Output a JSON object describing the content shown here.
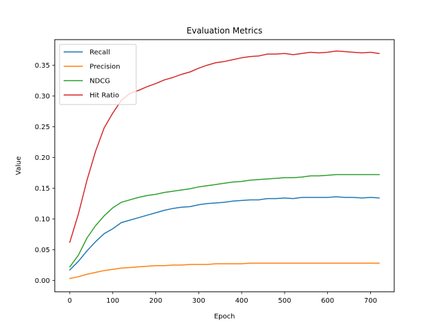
{
  "chart_data": {
    "type": "line",
    "title": "Evaluation Metrics",
    "xlabel": "Epoch",
    "ylabel": "Value",
    "xlim": [
      -35,
      755
    ],
    "ylim": [
      -0.0185,
      0.3915
    ],
    "xticks": [
      0,
      100,
      200,
      300,
      400,
      500,
      600,
      700
    ],
    "yticks": [
      0.0,
      0.05,
      0.1,
      0.15,
      0.2,
      0.25,
      0.3,
      0.35
    ],
    "ytick_labels": [
      "0.00",
      "0.05",
      "0.10",
      "0.15",
      "0.20",
      "0.25",
      "0.30",
      "0.35"
    ],
    "legend_position": "upper-left",
    "grid": false,
    "x": [
      0,
      20,
      40,
      60,
      80,
      100,
      120,
      140,
      160,
      180,
      200,
      220,
      240,
      260,
      280,
      300,
      320,
      340,
      360,
      380,
      400,
      420,
      440,
      460,
      480,
      500,
      520,
      540,
      560,
      580,
      600,
      620,
      640,
      660,
      680,
      700,
      720
    ],
    "series": [
      {
        "name": "Recall",
        "color": "#1f77b4",
        "values": [
          0.017,
          0.031,
          0.048,
          0.063,
          0.076,
          0.084,
          0.094,
          0.098,
          0.102,
          0.106,
          0.11,
          0.114,
          0.117,
          0.119,
          0.12,
          0.123,
          0.125,
          0.126,
          0.127,
          0.129,
          0.13,
          0.131,
          0.131,
          0.133,
          0.133,
          0.134,
          0.133,
          0.135,
          0.135,
          0.135,
          0.135,
          0.136,
          0.135,
          0.135,
          0.134,
          0.135,
          0.134
        ]
      },
      {
        "name": "Precision",
        "color": "#ff7f0e",
        "values": [
          0.003,
          0.006,
          0.01,
          0.013,
          0.016,
          0.018,
          0.02,
          0.021,
          0.022,
          0.023,
          0.024,
          0.024,
          0.025,
          0.025,
          0.026,
          0.026,
          0.026,
          0.027,
          0.027,
          0.027,
          0.027,
          0.028,
          0.028,
          0.028,
          0.028,
          0.028,
          0.028,
          0.028,
          0.028,
          0.028,
          0.028,
          0.028,
          0.028,
          0.028,
          0.028,
          0.028,
          0.028
        ]
      },
      {
        "name": "NDCG",
        "color": "#2ca02c",
        "values": [
          0.022,
          0.041,
          0.069,
          0.089,
          0.105,
          0.118,
          0.127,
          0.131,
          0.135,
          0.138,
          0.14,
          0.143,
          0.145,
          0.147,
          0.149,
          0.152,
          0.154,
          0.156,
          0.158,
          0.16,
          0.161,
          0.163,
          0.164,
          0.165,
          0.166,
          0.167,
          0.167,
          0.168,
          0.17,
          0.17,
          0.171,
          0.172,
          0.172,
          0.172,
          0.172,
          0.172,
          0.172
        ]
      },
      {
        "name": "Hit Ratio",
        "color": "#d62728",
        "values": [
          0.062,
          0.108,
          0.163,
          0.21,
          0.248,
          0.272,
          0.293,
          0.304,
          0.309,
          0.315,
          0.32,
          0.326,
          0.33,
          0.335,
          0.339,
          0.345,
          0.35,
          0.354,
          0.356,
          0.359,
          0.362,
          0.364,
          0.365,
          0.368,
          0.368,
          0.369,
          0.367,
          0.369,
          0.371,
          0.37,
          0.371,
          0.373,
          0.372,
          0.371,
          0.37,
          0.371,
          0.369
        ]
      }
    ]
  }
}
